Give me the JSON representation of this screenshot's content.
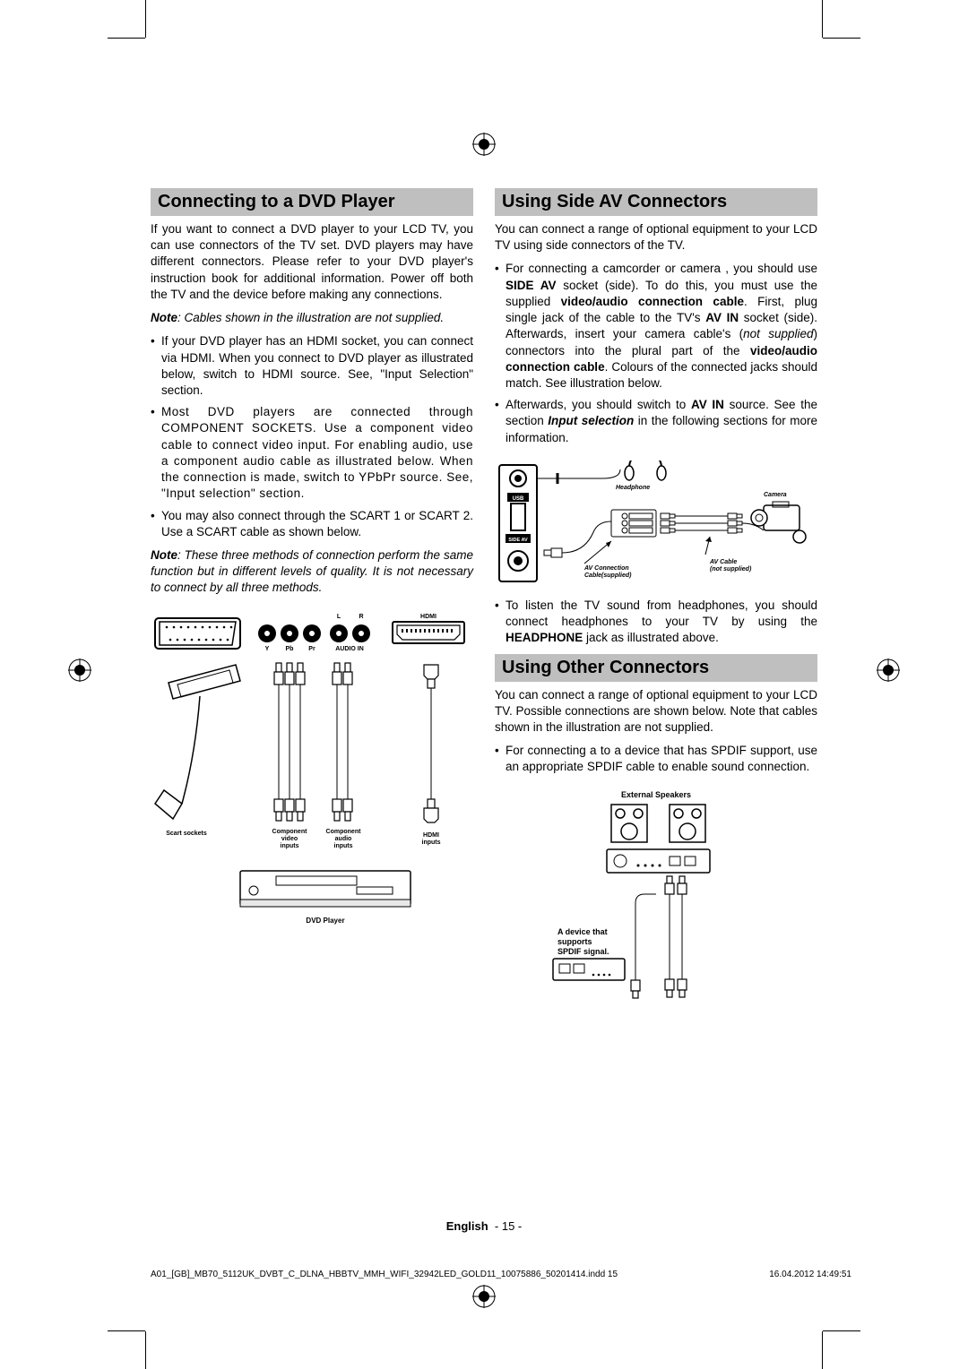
{
  "left": {
    "header": "Connecting to a DVD Player",
    "intro": "If you want to connect a DVD player to your LCD TV, you can use connectors of the TV set. DVD players may have different connectors. Please refer to your DVD player's instruction book for additional information. Power off both the TV and the device before making any connections.",
    "note1_prefix": "Note",
    "note1_body": ": Cables shown in the illustration are not supplied.",
    "bullets": [
      "If your DVD player has an HDMI socket, you can connect via HDMI. When you connect to DVD player as illustrated below, switch to HDMI source. See, \"Input Selection\" section.",
      "Most DVD players are connected through COMPONENT SOCKETS. Use a component video cable to connect video input. For enabling audio, use a component audio cable as illustrated below. When the connection is made, switch to YPbPr source. See, \"Input selection\" section.",
      "You may also connect through the SCART 1 or SCART 2. Use a SCART cable as shown below."
    ],
    "note2_prefix": "Note",
    "note2_body": ": These three methods of connection perform the same function but in different levels of quality. It is not necessary to connect by all three methods.",
    "diagram": {
      "hdmi": "HDMI",
      "lr_l": "L",
      "lr_r": "R",
      "y": "Y",
      "pb": "Pb",
      "pr": "Pr",
      "audio_in": "AUDIO IN",
      "scart_sockets": "Scart sockets",
      "comp_video": "Component\nvideo\ninputs",
      "comp_audio": "Component\naudio\ninputs",
      "hdmi_inputs": "HDMI\ninputs",
      "dvd_player": "DVD Player"
    }
  },
  "right": {
    "header1": "Using Side AV Connectors",
    "intro1": "You can connect a range of optional equipment to your LCD TV using side connectors of the TV.",
    "bullet1_html": "For connecting a camcorder or camera , you should use <b>SIDE AV</b> socket (side). To do this, you must use the supplied <b>video/audio connection cable</b>. First, plug single jack of the cable to the TV's <b>AV IN</b> socket (side). Afterwards, insert your camera cable's (<i>not supplied</i>) connectors into the plural part of the <b>video/audio connection cable</b>. Colours of the connected jacks should match. See illustration below.",
    "bullet2_html": "Afterwards, you should switch to <b>AV IN</b> source. See the section <b><i>Input selection</i></b> in the following sections for more information.",
    "diagram1": {
      "usb": "USB",
      "sideav": "SIDE AV",
      "headphone": "Headphone",
      "camera": "Camera",
      "avconn": "AV Connection\nCable(supplied)",
      "avcable": "AV Cable\n(not supplied)"
    },
    "bullet3_html": "To listen the TV sound from headphones, you should connect headphones to your TV by using the <b>HEADPHONE</b> jack as illustrated above.",
    "header2": "Using Other Connectors",
    "intro2": "You can connect a range of optional equipment to your LCD TV. Possible connections are shown below. Note that cables shown in the illustration are not supplied.",
    "bullet4": "For connecting a to a device that has SPDIF support, use an appropriate SPDIF cable to enable sound connection.",
    "diagram2": {
      "ext_speakers": "External Speakers",
      "device_label": "A device that\nsupports\nSPDIF signal."
    }
  },
  "footer": {
    "lang": "English",
    "page": "- 15 -"
  },
  "imprint": {
    "file": "A01_[GB]_MB70_5112UK_DVBT_C_DLNA_HBBTV_MMH_WIFI_32942LED_GOLD11_10075886_50201414.indd   15",
    "date": "16.04.2012   14:49:51"
  }
}
